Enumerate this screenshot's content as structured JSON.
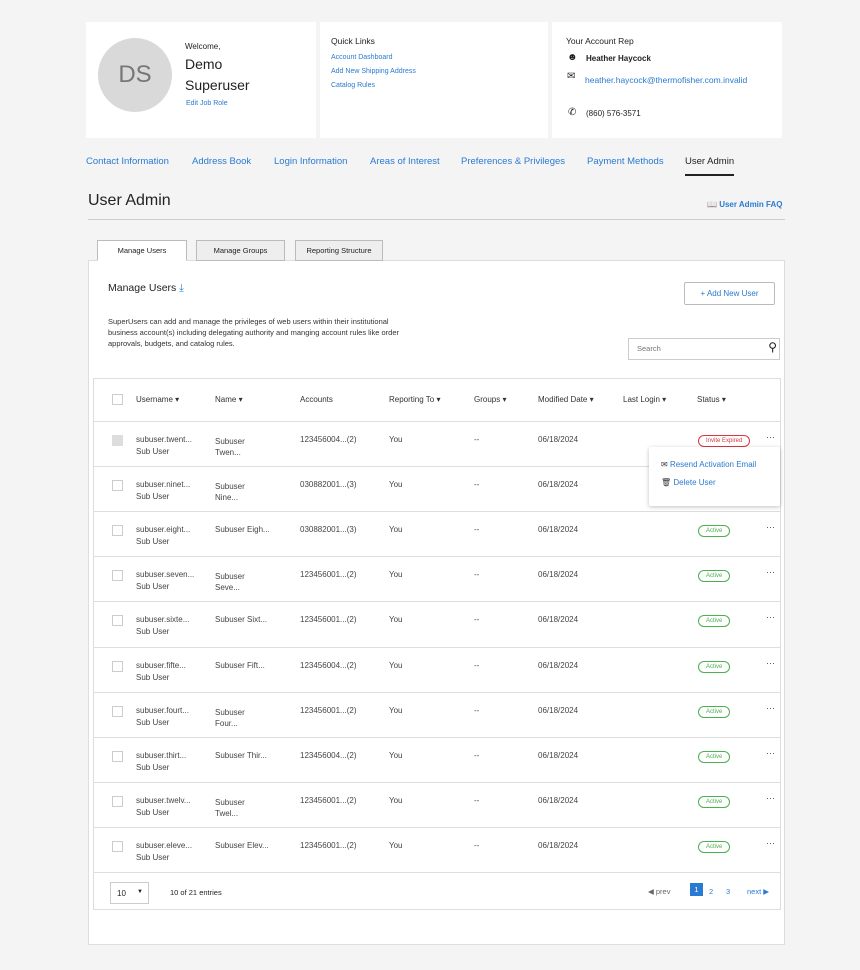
{
  "welcome": {
    "initials": "DS",
    "greeting": "Welcome,",
    "first": "Demo",
    "last": "Superuser",
    "edit_link": "Edit Job Role"
  },
  "quick_links": {
    "title": "Quick Links",
    "items": [
      "Account Dashboard",
      "Add New Shipping Address",
      "Catalog Rules"
    ]
  },
  "rep": {
    "title": "Your Account Rep",
    "name": "Heather Haycock",
    "email": "heather.haycock@thermofisher.com.invalid",
    "phone": "(860) 576-3571"
  },
  "nav": [
    "Contact Information",
    "Address Book",
    "Login Information",
    "Areas of Interest",
    "Preferences & Privileges",
    "Payment Methods",
    "User Admin"
  ],
  "page": {
    "title": "User Admin",
    "faq": "User Admin FAQ"
  },
  "subtabs": [
    "Manage Users",
    "Manage Groups",
    "Reporting Structure"
  ],
  "manage": {
    "title": "Manage Users",
    "description": "SuperUsers can add and manage the privileges of web users within their institutional business account(s) including delegating authority and manging account rules like order approvals, budgets, and catalog rules.",
    "add_button": "+ Add New User",
    "search_placeholder": "Search"
  },
  "columns": [
    "Username ▾",
    "Name ▾",
    "Accounts",
    "Reporting To ▾",
    "Groups ▾",
    "Modified Date ▾",
    "Last Login ▾",
    "Status ▾"
  ],
  "rows": [
    {
      "username": "subuser.twent...",
      "role": "Sub User",
      "name": "Subuser\nTwen...",
      "accounts": "123456004...(2)",
      "reporting": "You",
      "groups": "--",
      "modified": "06/18/2024",
      "last_login": "",
      "status": "Invite Expired"
    },
    {
      "username": "subuser.ninet...",
      "role": "Sub User",
      "name": "Subuser\nNine...",
      "accounts": "030882001...(3)",
      "reporting": "You",
      "groups": "--",
      "modified": "06/18/2024",
      "last_login": "",
      "status": ""
    },
    {
      "username": "subuser.eight...",
      "role": "Sub User",
      "name": "Subuser Eigh...",
      "accounts": "030882001...(3)",
      "reporting": "You",
      "groups": "--",
      "modified": "06/18/2024",
      "last_login": "",
      "status": "Active"
    },
    {
      "username": "subuser.seven...",
      "role": "Sub User",
      "name": "Subuser\nSeve...",
      "accounts": "123456001...(2)",
      "reporting": "You",
      "groups": "--",
      "modified": "06/18/2024",
      "last_login": "",
      "status": "Active"
    },
    {
      "username": "subuser.sixte...",
      "role": "Sub User",
      "name": "Subuser Sixt...",
      "accounts": "123456001...(2)",
      "reporting": "You",
      "groups": "--",
      "modified": "06/18/2024",
      "last_login": "",
      "status": "Active"
    },
    {
      "username": "subuser.fifte...",
      "role": "Sub User",
      "name": "Subuser Fift...",
      "accounts": "123456004...(2)",
      "reporting": "You",
      "groups": "--",
      "modified": "06/18/2024",
      "last_login": "",
      "status": "Active"
    },
    {
      "username": "subuser.fourt...",
      "role": "Sub User",
      "name": "Subuser\nFour...",
      "accounts": "123456001...(2)",
      "reporting": "You",
      "groups": "--",
      "modified": "06/18/2024",
      "last_login": "",
      "status": "Active"
    },
    {
      "username": "subuser.thirt...",
      "role": "Sub User",
      "name": "Subuser Thir...",
      "accounts": "123456004...(2)",
      "reporting": "You",
      "groups": "--",
      "modified": "06/18/2024",
      "last_login": "",
      "status": "Active"
    },
    {
      "username": "subuser.twelv...",
      "role": "Sub User",
      "name": "Subuser\nTwel...",
      "accounts": "123456001...(2)",
      "reporting": "You",
      "groups": "--",
      "modified": "06/18/2024",
      "last_login": "",
      "status": "Active"
    },
    {
      "username": "subuser.eleve...",
      "role": "Sub User",
      "name": "Subuser Elev...",
      "accounts": "123456001...(2)",
      "reporting": "You",
      "groups": "--",
      "modified": "06/18/2024",
      "last_login": "",
      "status": "Active"
    }
  ],
  "row_menu": [
    "Resend Activation Email",
    "Delete User"
  ],
  "footer": {
    "page_size": "10",
    "entries": "10 of 21 entries",
    "prev": "prev",
    "pages": [
      "1",
      "2",
      "3"
    ],
    "current_page": "1",
    "next": "next"
  },
  "colors": {
    "link": "#2a7ad2",
    "expired": "#d9373f",
    "active": "#4caf50"
  }
}
